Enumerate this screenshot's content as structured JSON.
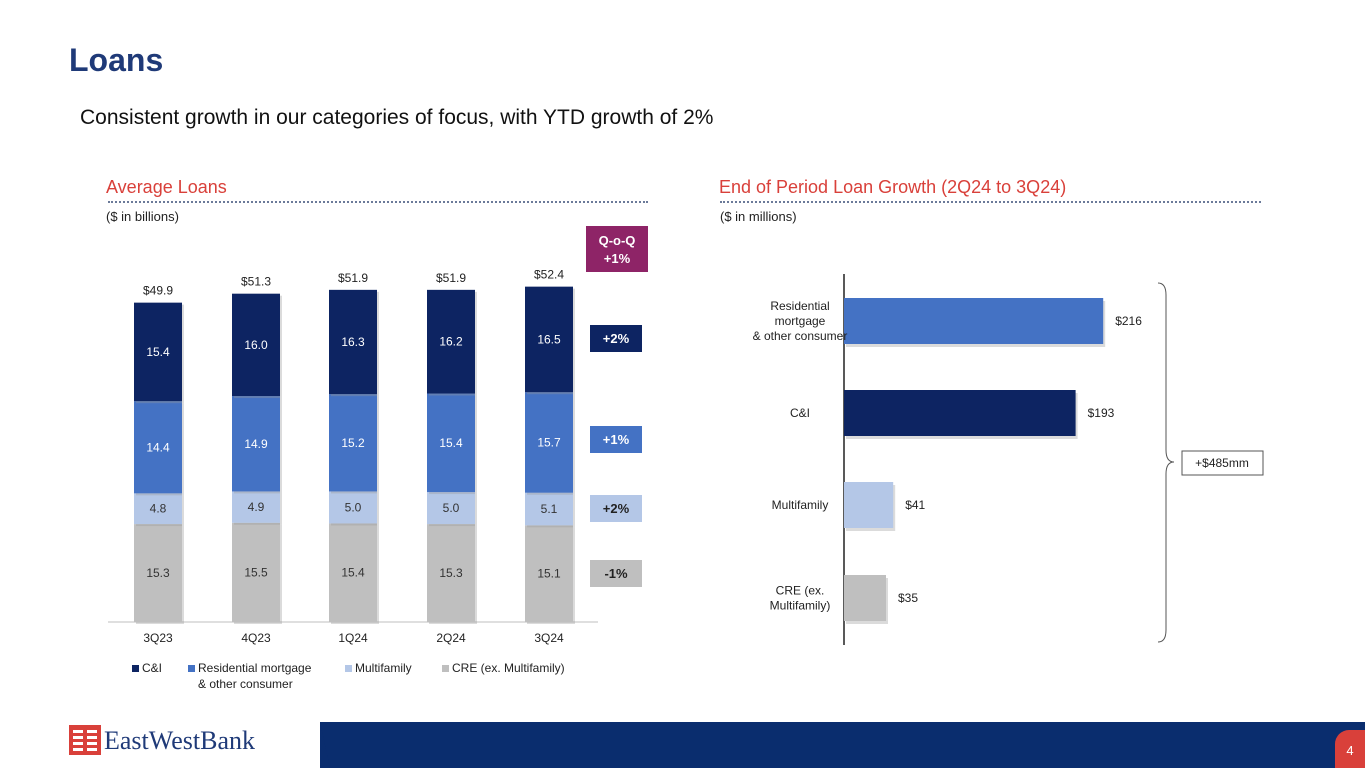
{
  "title": "Loans",
  "subtitle": "Consistent growth in our categories of focus, with YTD growth of 2%",
  "left_panel": {
    "title": "Average Loans",
    "units": "($ in billions)"
  },
  "right_panel": {
    "title": "End of Period Loan Growth (2Q24 to 3Q24)",
    "units": "($ in millions)"
  },
  "colors": {
    "ci": "#0d2462",
    "residential": "#4472c4",
    "multifamily": "#b4c7e7",
    "cre": "#bfbfbf",
    "qoq": "#8e2467",
    "accent": "#d9403a",
    "navy": "#1f3a78"
  },
  "chart_data": [
    {
      "type": "bar",
      "stacked": true,
      "title": "Average Loans",
      "categories": [
        "3Q23",
        "4Q23",
        "1Q24",
        "2Q24",
        "3Q24"
      ],
      "series": [
        {
          "name": "CRE (ex. Multifamily)",
          "values": [
            15.3,
            15.5,
            15.4,
            15.3,
            15.1
          ],
          "value_labels": [
            "15.3",
            "15.5",
            "15.4",
            "15.3",
            "15.1"
          ]
        },
        {
          "name": "Multifamily",
          "values": [
            4.8,
            4.9,
            5.0,
            5.0,
            5.1
          ],
          "value_labels": [
            "4.8",
            "4.9",
            "5.0",
            "5.0",
            "5.1"
          ]
        },
        {
          "name": "Residential mortgage & other consumer",
          "values": [
            14.4,
            14.9,
            15.2,
            15.4,
            15.7
          ],
          "value_labels": [
            "14.4",
            "14.9",
            "15.2",
            "15.4",
            "15.7"
          ]
        },
        {
          "name": "C&I",
          "values": [
            15.4,
            16.0,
            16.3,
            16.2,
            16.5
          ],
          "value_labels": [
            "15.4",
            "16.0",
            "16.3",
            "16.2",
            "16.5"
          ]
        }
      ],
      "totals": [
        "$49.9",
        "$51.3",
        "$51.9",
        "$51.9",
        "$52.4"
      ],
      "legend": [
        {
          "name": "C&I",
          "lines": [
            "C&I"
          ]
        },
        {
          "name": "Residential mortgage & other consumer",
          "lines": [
            "Residential mortgage",
            "& other consumer"
          ]
        },
        {
          "name": "Multifamily",
          "lines": [
            "Multifamily"
          ]
        },
        {
          "name": "CRE (ex. Multifamily)",
          "lines": [
            "CRE (ex. Multifamily)"
          ]
        }
      ],
      "legend_position": "bottom",
      "qoq": {
        "header": [
          "Q-o-Q",
          "+1%"
        ],
        "ci": "+2%",
        "residential": "+1%",
        "multifamily": "+2%",
        "cre": "-1%"
      }
    },
    {
      "type": "bar",
      "orientation": "horizontal",
      "title": "End of Period Loan Growth (2Q24 to 3Q24)",
      "categories": [
        {
          "name": "Residential mortgage & other consumer",
          "lines": [
            "Residential",
            "mortgage",
            "& other consumer"
          ]
        },
        {
          "name": "C&I",
          "lines": [
            "C&I"
          ]
        },
        {
          "name": "Multifamily",
          "lines": [
            "Multifamily"
          ]
        },
        {
          "name": "CRE (ex. Multifamily)",
          "lines": [
            "CRE (ex.",
            "Multifamily)"
          ]
        }
      ],
      "values": [
        216,
        193,
        41,
        35
      ],
      "value_labels": [
        "$216",
        "$193",
        "$41",
        "$35"
      ],
      "total_label": "+$485mm"
    }
  ],
  "footer": {
    "logo": "EastWestBank",
    "page": "4"
  }
}
